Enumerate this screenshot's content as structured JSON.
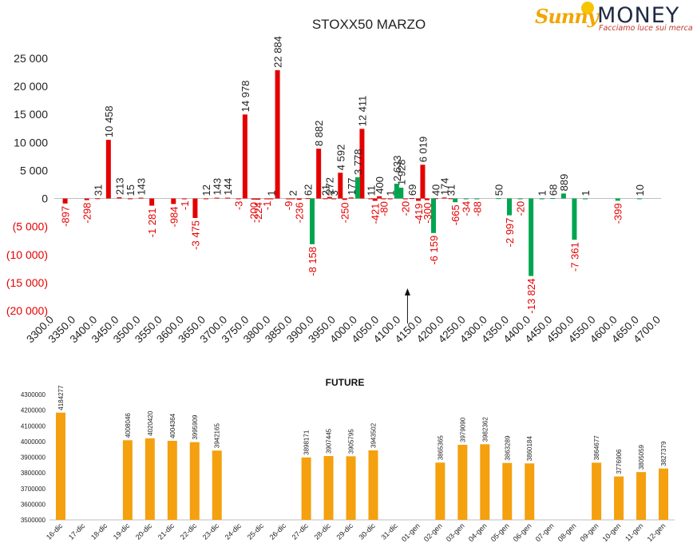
{
  "logo": {
    "brand_a": "Sunny",
    "brand_b": "MONEY",
    "tagline": "Facciamo luce sui mercati"
  },
  "colors": {
    "positive": "#e50000",
    "negative": "#00a550",
    "future": "#f4a00f",
    "neg_tick": "#e50000"
  },
  "chart_data": [
    {
      "type": "bar",
      "title": "STOXX50 MARZO",
      "ylim": [
        -20000,
        25000
      ],
      "yticks": [
        "(20 000)",
        "(15 000)",
        "(10 000)",
        "(5 000)",
        "0",
        "5 000",
        "10 000",
        "15 000",
        "20 000",
        "25 000"
      ],
      "ytick_values": [
        -20000,
        -15000,
        -10000,
        -5000,
        0,
        5000,
        10000,
        15000,
        20000,
        25000
      ],
      "xticks": [
        "3300.0",
        "3350.0",
        "3400.0",
        "3450.0",
        "3500.0",
        "3550.0",
        "3600.0",
        "3650.0",
        "3700.0",
        "3750.0",
        "3800.0",
        "3850.0",
        "3900.0",
        "3950.0",
        "4000.0",
        "4050.0",
        "4100.0",
        "4150.0",
        "4200.0",
        "4250.0",
        "4300.0",
        "4350.0",
        "4400.0",
        "4450.0",
        "4500.0",
        "4550.0",
        "4600.0",
        "4650.0",
        "4700.0"
      ],
      "xlim": [
        3300,
        4700
      ],
      "series": [
        {
          "color": "#e50000",
          "points": [
            {
              "x": 3325,
              "y": -897,
              "label": "-897"
            },
            {
              "x": 3375,
              "y": -298,
              "label": "-298"
            },
            {
              "x": 3400,
              "y": 31,
              "label": "31"
            },
            {
              "x": 3425,
              "y": 10458,
              "label": "10 458"
            },
            {
              "x": 3450,
              "y": 213,
              "label": "213"
            },
            {
              "x": 3475,
              "y": 15,
              "label": "15"
            },
            {
              "x": 3500,
              "y": 143,
              "label": "143"
            },
            {
              "x": 3525,
              "y": -1281,
              "label": "-1 281"
            },
            {
              "x": 3575,
              "y": -984,
              "label": "-984"
            },
            {
              "x": 3600,
              "y": -1,
              "label": "-1"
            },
            {
              "x": 3625,
              "y": -3475,
              "label": "-3 475"
            },
            {
              "x": 3650,
              "y": 12,
              "label": "12"
            },
            {
              "x": 3675,
              "y": 143,
              "label": "143"
            },
            {
              "x": 3700,
              "y": 144,
              "label": "144"
            },
            {
              "x": 3725,
              "y": -3,
              "label": "-3"
            },
            {
              "x": 3740,
              "y": 14978,
              "label": "14 978"
            },
            {
              "x": 3760,
              "y": -200,
              "label": "-200"
            },
            {
              "x": 3770,
              "y": -224,
              "label": "-224"
            },
            {
              "x": 3790,
              "y": -1,
              "label": "-1"
            },
            {
              "x": 3800,
              "y": 1,
              "label": "1"
            },
            {
              "x": 3815,
              "y": 22884,
              "label": "22 884"
            },
            {
              "x": 3840,
              "y": -9,
              "label": "-9"
            },
            {
              "x": 3850,
              "y": 2,
              "label": "2"
            },
            {
              "x": 3865,
              "y": -236,
              "label": "-236"
            },
            {
              "x": 3885,
              "y": 62,
              "label": "62"
            },
            {
              "x": 3910,
              "y": 8882,
              "label": "8 882"
            },
            {
              "x": 3925,
              "y": 21,
              "label": "21"
            },
            {
              "x": 3935,
              "y": 272,
              "label": "272"
            },
            {
              "x": 3945,
              "y": 3,
              "label": "3"
            },
            {
              "x": 3960,
              "y": 4592,
              "label": "4 592"
            },
            {
              "x": 3970,
              "y": -250,
              "label": "-250"
            },
            {
              "x": 3985,
              "y": 177,
              "label": "177"
            },
            {
              "x": 4010,
              "y": 12411,
              "label": "12 411"
            },
            {
              "x": 4030,
              "y": 11,
              "label": "11"
            },
            {
              "x": 4040,
              "y": -421,
              "label": "-421"
            },
            {
              "x": 4050,
              "y": 400,
              "label": "400"
            },
            {
              "x": 4060,
              "y": -80,
              "label": "-80"
            },
            {
              "x": 4075,
              "y": 1,
              "label": "1"
            },
            {
              "x": 4110,
              "y": -20,
              "label": "-20"
            },
            {
              "x": 4125,
              "y": 69,
              "label": "69"
            },
            {
              "x": 4140,
              "y": -419,
              "label": "-419"
            },
            {
              "x": 4150,
              "y": 6019,
              "label": "6 019"
            },
            {
              "x": 4160,
              "y": -300,
              "label": "-300"
            },
            {
              "x": 4180,
              "y": 40,
              "label": "40"
            },
            {
              "x": 4200,
              "y": 174,
              "label": "174"
            },
            {
              "x": 4215,
              "y": 31,
              "label": "31"
            }
          ]
        },
        {
          "color": "#00a550",
          "points": [
            {
              "x": 3895,
              "y": -8158,
              "label": "-8 158"
            },
            {
              "x": 4000,
              "y": 3778,
              "label": "3 778"
            },
            {
              "x": 4090,
              "y": 2633,
              "label": "2 633"
            },
            {
              "x": 4100,
              "y": 1928,
              "label": "1 928"
            },
            {
              "x": 4175,
              "y": -6159,
              "label": "-6 159"
            },
            {
              "x": 4225,
              "y": -665,
              "label": "-665"
            },
            {
              "x": 4250,
              "y": -34,
              "label": "-34"
            },
            {
              "x": 4275,
              "y": -88,
              "label": "-88"
            },
            {
              "x": 4325,
              "y": 50,
              "label": "50"
            },
            {
              "x": 4350,
              "y": -2997,
              "label": "-2 997"
            },
            {
              "x": 4375,
              "y": -20,
              "label": "-20"
            },
            {
              "x": 4400,
              "y": -13824,
              "label": "-13 824"
            },
            {
              "x": 4425,
              "y": 1,
              "label": "1"
            },
            {
              "x": 4450,
              "y": 68,
              "label": "68"
            },
            {
              "x": 4475,
              "y": 889,
              "label": "889"
            },
            {
              "x": 4500,
              "y": -7361,
              "label": "-7 361"
            },
            {
              "x": 4525,
              "y": 1,
              "label": "1"
            },
            {
              "x": 4600,
              "y": -399,
              "label": "-399"
            },
            {
              "x": 4650,
              "y": 10,
              "label": "10"
            }
          ]
        }
      ],
      "marker_x": 4115
    },
    {
      "type": "bar",
      "title": "FUTURE",
      "ylim": [
        3500000,
        4300000
      ],
      "yticks": [
        "3500000",
        "3600000",
        "3700000",
        "3800000",
        "3900000",
        "4000000",
        "4100000",
        "4200000",
        "4300000"
      ],
      "ytick_values": [
        3500000,
        3600000,
        3700000,
        3800000,
        3900000,
        4000000,
        4100000,
        4200000,
        4300000
      ],
      "categories": [
        "16-dic",
        "17-dic",
        "18-dic",
        "19-dic",
        "20-dic",
        "21-dic",
        "22-dic",
        "23-dic",
        "24-dic",
        "25-dic",
        "26-dic",
        "27-dic",
        "28-dic",
        "29-dic",
        "30-dic",
        "31-dic",
        "01-gen",
        "02-gen",
        "03-gen",
        "04-gen",
        "05-gen",
        "06-gen",
        "07-gen",
        "08-gen",
        "09-gen",
        "10-gen",
        "11-gen",
        "12-gen"
      ],
      "values": [
        4184277,
        null,
        null,
        4008046,
        4020420,
        4004364,
        3995909,
        3942165,
        null,
        null,
        null,
        3898171,
        3907445,
        3905795,
        3943502,
        null,
        null,
        3865365,
        3979090,
        3982362,
        3863289,
        3860184,
        null,
        null,
        3864677,
        3776906,
        3805059,
        3827379
      ],
      "labels": [
        "4184277",
        "",
        "",
        "4008046",
        "4020420",
        "4004364",
        "3995909",
        "3942165",
        "",
        "",
        "",
        "3898171",
        "3907445",
        "3905795",
        "3943502",
        "",
        "",
        "3865365",
        "3979090",
        "3982362",
        "3863289",
        "3860184",
        "",
        "",
        "3864677",
        "3776906",
        "3805059",
        "3827379"
      ]
    }
  ]
}
